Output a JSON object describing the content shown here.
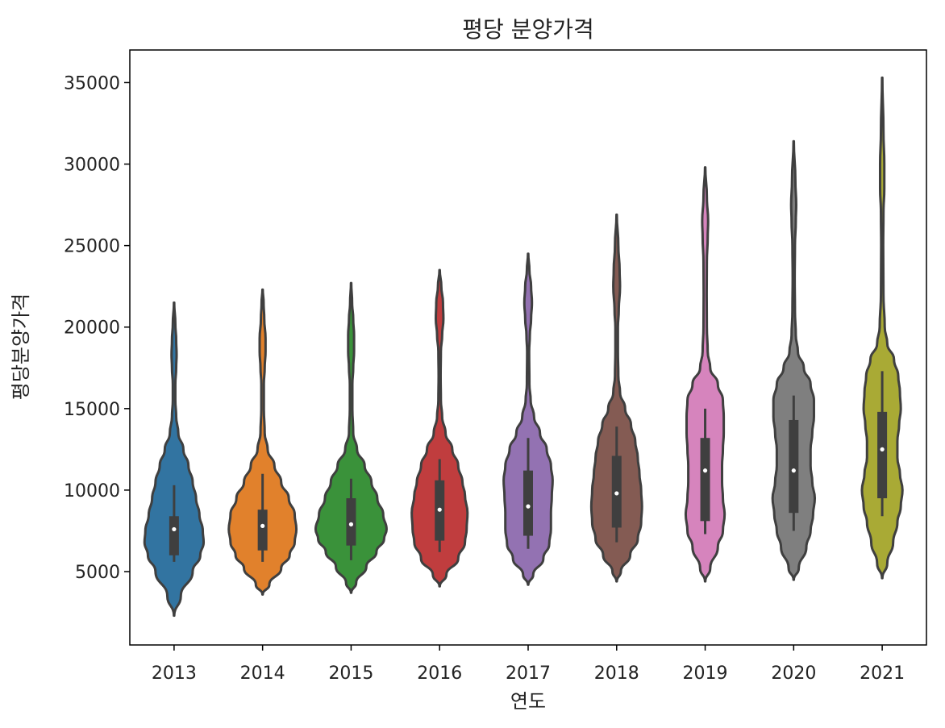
{
  "chart_data": {
    "type": "violin",
    "title": "평당 분양가격",
    "xlabel": "연도",
    "ylabel": "평당분양가격",
    "ylim": [
      500,
      37000
    ],
    "y_ticks": [
      5000,
      10000,
      15000,
      20000,
      25000,
      30000,
      35000
    ],
    "y_tick_labels": [
      "5000",
      "10000",
      "15000",
      "20000",
      "25000",
      "30000",
      "35000"
    ],
    "categories": [
      "2013",
      "2014",
      "2015",
      "2016",
      "2017",
      "2018",
      "2019",
      "2020",
      "2021"
    ],
    "colors": [
      "#3274a1",
      "#e1812c",
      "#3a923a",
      "#c03d3e",
      "#9372b2",
      "#845b53",
      "#d684bd",
      "#7f7f7f",
      "#a9aa35"
    ],
    "grid": false,
    "legend": "none",
    "series": [
      {
        "median": 7600,
        "q1": 6000,
        "q3": 8400,
        "whisker_low": 5600,
        "whisker_high": 10300,
        "kde_min": 2300,
        "kde_max": 21500,
        "density": [
          [
            2300,
            0.2
          ],
          [
            3500,
            8
          ],
          [
            5000,
            22
          ],
          [
            6000,
            31
          ],
          [
            6800,
            35
          ],
          [
            7500,
            34
          ],
          [
            8500,
            30
          ],
          [
            9500,
            26
          ],
          [
            10500,
            22
          ],
          [
            11500,
            17
          ],
          [
            12500,
            11
          ],
          [
            13500,
            5
          ],
          [
            14500,
            2.5
          ],
          [
            15500,
            1.5
          ],
          [
            16500,
            1.5
          ],
          [
            17500,
            2.5
          ],
          [
            18300,
            3
          ],
          [
            19200,
            2.5
          ],
          [
            20200,
            1.5
          ],
          [
            21500,
            0.2
          ]
        ]
      },
      {
        "median": 7800,
        "q1": 6300,
        "q3": 8800,
        "whisker_low": 5600,
        "whisker_high": 11000,
        "kde_min": 3600,
        "kde_max": 22300,
        "density": [
          [
            3600,
            0.2
          ],
          [
            4200,
            8
          ],
          [
            5200,
            22
          ],
          [
            6000,
            32
          ],
          [
            6800,
            38
          ],
          [
            7600,
            40
          ],
          [
            8500,
            38
          ],
          [
            9500,
            31
          ],
          [
            10500,
            22
          ],
          [
            11500,
            14
          ],
          [
            12500,
            6
          ],
          [
            13500,
            2.5
          ],
          [
            15000,
            1.5
          ],
          [
            16500,
            1.5
          ],
          [
            17500,
            2.5
          ],
          [
            18500,
            3.5
          ],
          [
            19300,
            3.5
          ],
          [
            20500,
            2
          ],
          [
            21500,
            1.2
          ],
          [
            22300,
            0.2
          ]
        ]
      },
      {
        "median": 7900,
        "q1": 6600,
        "q3": 9500,
        "whisker_low": 5700,
        "whisker_high": 10700,
        "kde_min": 3700,
        "kde_max": 22700,
        "density": [
          [
            3700,
            0.2
          ],
          [
            4300,
            6
          ],
          [
            5300,
            18
          ],
          [
            6200,
            30
          ],
          [
            7000,
            39
          ],
          [
            7600,
            42
          ],
          [
            8500,
            38
          ],
          [
            9500,
            31
          ],
          [
            10500,
            24
          ],
          [
            11500,
            16
          ],
          [
            12500,
            7
          ],
          [
            13500,
            2.5
          ],
          [
            15000,
            1.5
          ],
          [
            16500,
            1.5
          ],
          [
            17500,
            2.5
          ],
          [
            18500,
            3.5
          ],
          [
            19500,
            3.5
          ],
          [
            20500,
            2.5
          ],
          [
            21500,
            1.2
          ],
          [
            22700,
            0.2
          ]
        ]
      },
      {
        "median": 8800,
        "q1": 6900,
        "q3": 10600,
        "whisker_low": 6200,
        "whisker_high": 11900,
        "kde_min": 4100,
        "kde_max": 23500,
        "density": [
          [
            4100,
            0.2
          ],
          [
            4800,
            8
          ],
          [
            5800,
            22
          ],
          [
            6800,
            30
          ],
          [
            7600,
            32
          ],
          [
            8600,
            33
          ],
          [
            9700,
            30
          ],
          [
            10500,
            27
          ],
          [
            11500,
            22
          ],
          [
            12500,
            15
          ],
          [
            13500,
            7
          ],
          [
            14500,
            3
          ],
          [
            15500,
            1.5
          ],
          [
            17000,
            1.2
          ],
          [
            18500,
            1.5
          ],
          [
            19500,
            3
          ],
          [
            20500,
            4.5
          ],
          [
            21500,
            4
          ],
          [
            22500,
            2
          ],
          [
            23500,
            0.2
          ]
        ]
      },
      {
        "median": 9000,
        "q1": 7200,
        "q3": 11200,
        "whisker_low": 6400,
        "whisker_high": 13200,
        "kde_min": 4200,
        "kde_max": 24500,
        "density": [
          [
            4200,
            0.2
          ],
          [
            4800,
            6
          ],
          [
            5800,
            18
          ],
          [
            6700,
            25
          ],
          [
            7600,
            27
          ],
          [
            8600,
            27
          ],
          [
            9600,
            28
          ],
          [
            10600,
            29
          ],
          [
            11500,
            27
          ],
          [
            12500,
            22
          ],
          [
            13500,
            14
          ],
          [
            14500,
            7
          ],
          [
            15500,
            3
          ],
          [
            16500,
            1.5
          ],
          [
            18500,
            1.2
          ],
          [
            19500,
            2
          ],
          [
            20500,
            3.5
          ],
          [
            21500,
            4.5
          ],
          [
            22500,
            3.5
          ],
          [
            23500,
            1.5
          ],
          [
            24500,
            0.2
          ]
        ]
      },
      {
        "median": 9800,
        "q1": 7700,
        "q3": 12100,
        "whisker_low": 6800,
        "whisker_high": 13900,
        "kde_min": 4400,
        "kde_max": 26900,
        "density": [
          [
            4400,
            0.2
          ],
          [
            5000,
            5
          ],
          [
            6000,
            16
          ],
          [
            7000,
            25
          ],
          [
            8000,
            29
          ],
          [
            9000,
            30
          ],
          [
            10000,
            29
          ],
          [
            11000,
            27
          ],
          [
            12000,
            25
          ],
          [
            13000,
            22
          ],
          [
            14000,
            17
          ],
          [
            15000,
            10
          ],
          [
            16000,
            4
          ],
          [
            17000,
            2
          ],
          [
            18500,
            1.5
          ],
          [
            20000,
            1.5
          ],
          [
            21000,
            2.5
          ],
          [
            22500,
            4
          ],
          [
            23500,
            3.5
          ],
          [
            25000,
            2
          ],
          [
            26900,
            0.2
          ]
        ]
      },
      {
        "median": 11200,
        "q1": 8100,
        "q3": 13200,
        "whisker_low": 7300,
        "whisker_high": 15000,
        "kde_min": 4400,
        "kde_max": 29800,
        "density": [
          [
            4400,
            0.2
          ],
          [
            5200,
            6
          ],
          [
            6500,
            15
          ],
          [
            7500,
            21
          ],
          [
            8500,
            23
          ],
          [
            9500,
            21
          ],
          [
            10500,
            20
          ],
          [
            11500,
            20
          ],
          [
            12500,
            21
          ],
          [
            13500,
            22
          ],
          [
            14500,
            22
          ],
          [
            15500,
            21
          ],
          [
            16500,
            15
          ],
          [
            17500,
            6
          ],
          [
            18500,
            3
          ],
          [
            20000,
            2
          ],
          [
            22000,
            1.8
          ],
          [
            24000,
            2
          ],
          [
            25500,
            3
          ],
          [
            26500,
            3.5
          ],
          [
            28000,
            2
          ],
          [
            29800,
            0.2
          ]
        ]
      },
      {
        "median": 11200,
        "q1": 8600,
        "q3": 14300,
        "whisker_low": 7500,
        "whisker_high": 15800,
        "kde_min": 4500,
        "kde_max": 31400,
        "density": [
          [
            4500,
            0.2
          ],
          [
            5200,
            6
          ],
          [
            6500,
            15
          ],
          [
            7500,
            20
          ],
          [
            8500,
            23
          ],
          [
            9500,
            25
          ],
          [
            10500,
            22
          ],
          [
            11500,
            20
          ],
          [
            12500,
            20
          ],
          [
            13500,
            22
          ],
          [
            14500,
            24
          ],
          [
            15500,
            24
          ],
          [
            16500,
            20
          ],
          [
            17500,
            12
          ],
          [
            18500,
            5
          ],
          [
            19500,
            2.5
          ],
          [
            21000,
            1.5
          ],
          [
            23000,
            1.2
          ],
          [
            25000,
            1.5
          ],
          [
            26500,
            2.5
          ],
          [
            27500,
            3
          ],
          [
            29000,
            2
          ],
          [
            31400,
            0.2
          ]
        ]
      },
      {
        "median": 12500,
        "q1": 9500,
        "q3": 14800,
        "whisker_low": 8400,
        "whisker_high": 17300,
        "kde_min": 4600,
        "kde_max": 35300,
        "density": [
          [
            4600,
            0.2
          ],
          [
            5500,
            6
          ],
          [
            6800,
            13
          ],
          [
            8000,
            18
          ],
          [
            9000,
            22
          ],
          [
            10000,
            24
          ],
          [
            11000,
            21
          ],
          [
            12000,
            18
          ],
          [
            13000,
            18
          ],
          [
            14000,
            20
          ],
          [
            15000,
            22
          ],
          [
            16000,
            21
          ],
          [
            17000,
            19
          ],
          [
            18000,
            14
          ],
          [
            19000,
            6
          ],
          [
            20000,
            3
          ],
          [
            22000,
            1.5
          ],
          [
            25000,
            1.2
          ],
          [
            27000,
            1.5
          ],
          [
            28500,
            2.5
          ],
          [
            30000,
            2.5
          ],
          [
            32000,
            1.5
          ],
          [
            35300,
            0.2
          ]
        ]
      }
    ]
  }
}
